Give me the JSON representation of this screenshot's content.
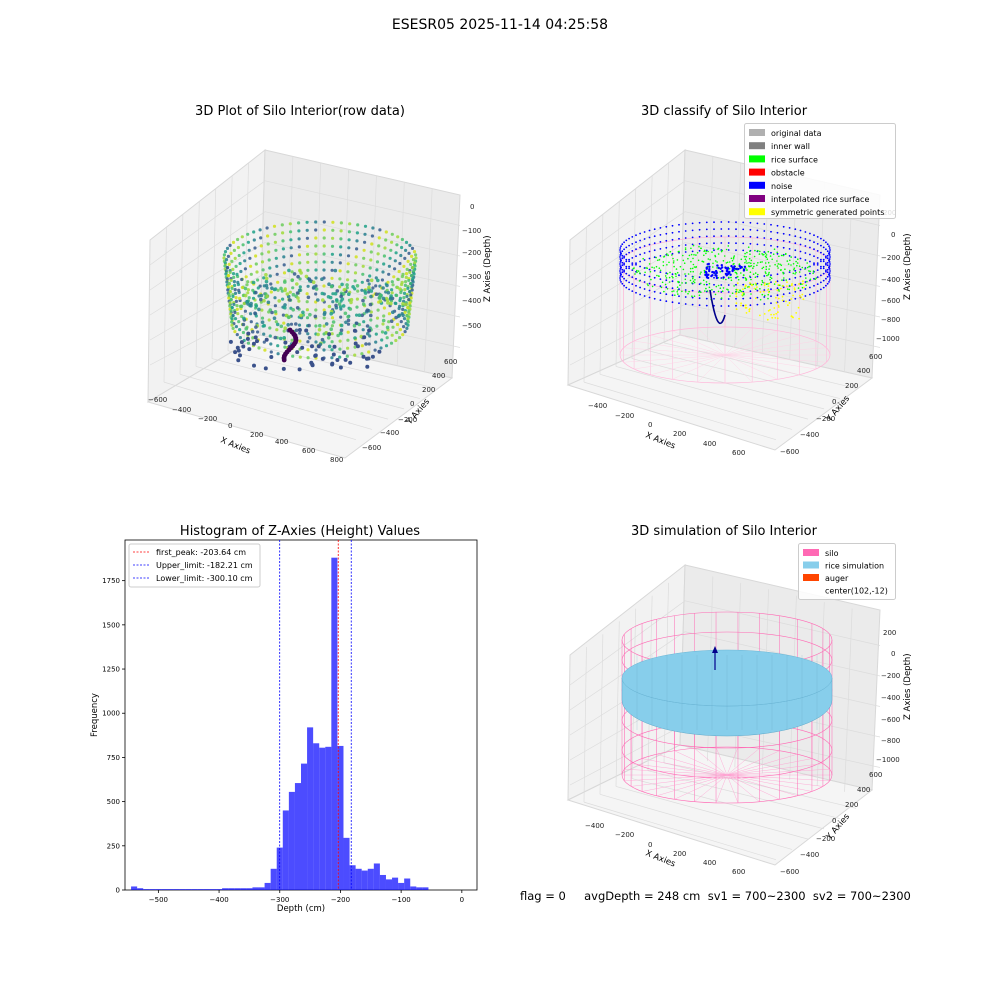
{
  "figure": {
    "suptitle": "ESESR05 2025-11-14 04:25:58",
    "status_text": "flag = 0     avgDepth = 248 cm  sv1 = 700~2300  sv2 = 700~2300"
  },
  "chart_data": [
    {
      "type": "scatter",
      "title": "3D Plot of Silo Interior(row data)",
      "xlabel": "X Axies",
      "ylabel": "Y Axies",
      "zlabel": "Z Axies (Depth)",
      "x_ticks": [
        "−600",
        "−400",
        "−200",
        "0",
        "200",
        "400",
        "600",
        "800"
      ],
      "y_ticks": [
        "−600",
        "−400",
        "−200",
        "0",
        "200",
        "400",
        "600"
      ],
      "z_ticks": [
        "0",
        "−100",
        "−200",
        "−300",
        "−400",
        "−500"
      ],
      "xlim": [
        -600,
        800
      ],
      "ylim": [
        -600,
        600
      ],
      "zlim": [
        -550,
        0
      ]
    },
    {
      "type": "scatter",
      "title": "3D classify of Silo Interior",
      "xlabel": "X Axies",
      "ylabel": "Y Axies",
      "zlabel": "Z Axies (Depth)",
      "x_ticks": [
        "−400",
        "−200",
        "0",
        "200",
        "400",
        "600"
      ],
      "y_ticks": [
        "−600",
        "−400",
        "−200",
        "0",
        "200",
        "400",
        "600"
      ],
      "z_ticks": [
        "200",
        "0",
        "−200",
        "−400",
        "−600",
        "−800",
        "−1000"
      ],
      "legend": [
        {
          "label": "original data",
          "color": "#b0b0b0"
        },
        {
          "label": "inner wall",
          "color": "#808080"
        },
        {
          "label": "rice surface",
          "color": "#00ff00"
        },
        {
          "label": "obstacle",
          "color": "#ff0000"
        },
        {
          "label": "noise",
          "color": "#0000ff"
        },
        {
          "label": "interpolated rice surface",
          "color": "#800080"
        },
        {
          "label": "symmetric generated points",
          "color": "#ffff00"
        }
      ],
      "legend_position": "upper right"
    },
    {
      "type": "bar",
      "title": "Histogram of Z-Axies (Height) Values",
      "xlabel": "Depth (cm)",
      "ylabel": "Frequency",
      "x_ticks": [
        -500,
        -400,
        -300,
        -200,
        -100,
        0
      ],
      "y_ticks": [
        0,
        250,
        500,
        750,
        1000,
        1250,
        1500,
        1750
      ],
      "xlim": [
        -555,
        25
      ],
      "ylim": [
        0,
        1980
      ],
      "bin_width": 10,
      "bins": [
        {
          "x": -540,
          "value": 20
        },
        {
          "x": -530,
          "value": 10
        },
        {
          "x": -520,
          "value": 5
        },
        {
          "x": -510,
          "value": 5
        },
        {
          "x": -500,
          "value": 5
        },
        {
          "x": -490,
          "value": 5
        },
        {
          "x": -480,
          "value": 5
        },
        {
          "x": -470,
          "value": 5
        },
        {
          "x": -460,
          "value": 5
        },
        {
          "x": -450,
          "value": 5
        },
        {
          "x": -440,
          "value": 5
        },
        {
          "x": -430,
          "value": 5
        },
        {
          "x": -420,
          "value": 5
        },
        {
          "x": -410,
          "value": 5
        },
        {
          "x": -400,
          "value": 5
        },
        {
          "x": -390,
          "value": 10
        },
        {
          "x": -380,
          "value": 10
        },
        {
          "x": -370,
          "value": 10
        },
        {
          "x": -360,
          "value": 10
        },
        {
          "x": -350,
          "value": 10
        },
        {
          "x": -340,
          "value": 15
        },
        {
          "x": -330,
          "value": 15
        },
        {
          "x": -320,
          "value": 40
        },
        {
          "x": -310,
          "value": 120
        },
        {
          "x": -300,
          "value": 240
        },
        {
          "x": -290,
          "value": 450
        },
        {
          "x": -280,
          "value": 555
        },
        {
          "x": -270,
          "value": 605
        },
        {
          "x": -260,
          "value": 715
        },
        {
          "x": -250,
          "value": 920
        },
        {
          "x": -240,
          "value": 830
        },
        {
          "x": -230,
          "value": 805
        },
        {
          "x": -220,
          "value": 810
        },
        {
          "x": -210,
          "value": 1880
        },
        {
          "x": -200,
          "value": 815
        },
        {
          "x": -190,
          "value": 295
        },
        {
          "x": -180,
          "value": 140
        },
        {
          "x": -170,
          "value": 120
        },
        {
          "x": -160,
          "value": 110
        },
        {
          "x": -150,
          "value": 120
        },
        {
          "x": -140,
          "value": 150
        },
        {
          "x": -130,
          "value": 85
        },
        {
          "x": -120,
          "value": 60
        },
        {
          "x": -110,
          "value": 70
        },
        {
          "x": -100,
          "value": 40
        },
        {
          "x": -90,
          "value": 65
        },
        {
          "x": -80,
          "value": 20
        },
        {
          "x": -70,
          "value": 15
        },
        {
          "x": -60,
          "value": 15
        }
      ],
      "bar_color": "#0000ff",
      "lines": [
        {
          "label": "first_peak: -203.64 cm",
          "x": -203.64,
          "color": "#ff0000"
        },
        {
          "label": "Upper_limit: -182.21 cm",
          "x": -182.21,
          "color": "#0000ff"
        },
        {
          "label": "Lower_limit: -300.10 cm",
          "x": -300.1,
          "color": "#0000ff"
        }
      ],
      "legend_position": "upper left"
    },
    {
      "type": "scatter",
      "title": "3D simulation of Silo Interior",
      "xlabel": "X Axies",
      "ylabel": "Y Axies",
      "zlabel": "Z Axies (Depth)",
      "x_ticks": [
        "−400",
        "−200",
        "0",
        "200",
        "400",
        "600"
      ],
      "y_ticks": [
        "−600",
        "−400",
        "−200",
        "0",
        "200",
        "400",
        "600"
      ],
      "z_ticks": [
        "200",
        "0",
        "−200",
        "−400",
        "−600",
        "−800",
        "−1000"
      ],
      "legend": [
        {
          "label": "silo",
          "color": "#ff69b4"
        },
        {
          "label": "rice simulation",
          "color": "#87ceeb"
        },
        {
          "label": "auger",
          "color": "#ff4500"
        },
        {
          "label": "center(102,-12)",
          "color": "none"
        }
      ],
      "legend_position": "upper right"
    }
  ]
}
